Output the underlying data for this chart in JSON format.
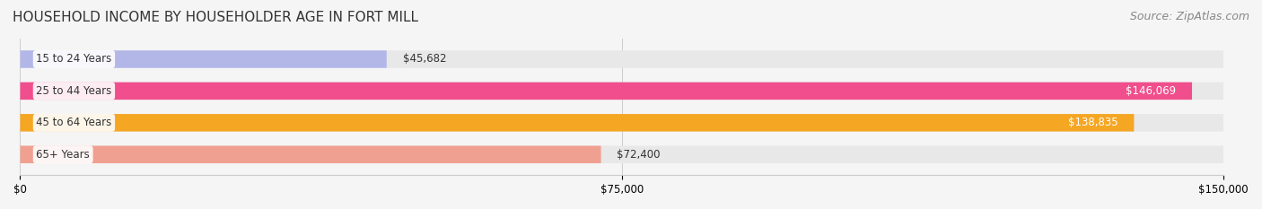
{
  "title": "HOUSEHOLD INCOME BY HOUSEHOLDER AGE IN FORT MILL",
  "source": "Source: ZipAtlas.com",
  "categories": [
    "15 to 24 Years",
    "25 to 44 Years",
    "45 to 64 Years",
    "65+ Years"
  ],
  "values": [
    45682,
    146069,
    138835,
    72400
  ],
  "bar_colors": [
    "#b3b7e8",
    "#f04e8c",
    "#f5a623",
    "#f0a090"
  ],
  "bar_bg_color": "#eeeeee",
  "label_colors": [
    "#333333",
    "#ffffff",
    "#ffffff",
    "#333333"
  ],
  "xmax": 150000,
  "xticks": [
    0,
    75000,
    150000
  ],
  "xtick_labels": [
    "$0",
    "$75,000",
    "$150,000"
  ],
  "title_fontsize": 11,
  "source_fontsize": 9,
  "bar_height": 0.55,
  "fig_bg_color": "#f5f5f5",
  "bar_bg_alpha": 1.0
}
